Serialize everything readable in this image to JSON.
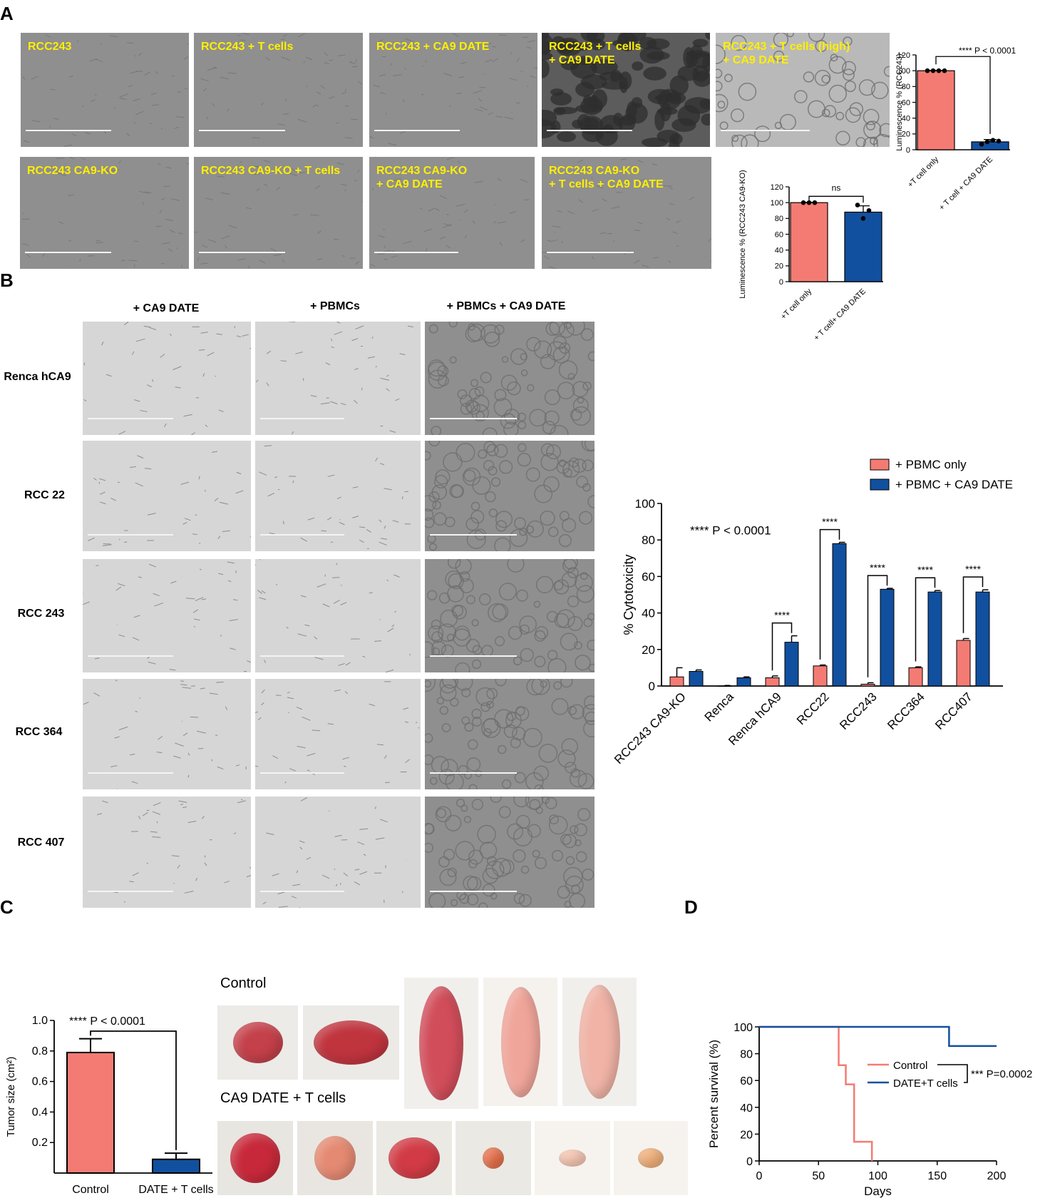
{
  "panels": {
    "A": "A",
    "B": "B",
    "C": "C",
    "D": "D"
  },
  "panelA": {
    "images_row1": [
      {
        "label": "RCC243",
        "tone": "mid"
      },
      {
        "label": "RCC243 + T cells",
        "tone": "mid"
      },
      {
        "label": "RCC243 + CA9 DATE",
        "tone": "mid"
      },
      {
        "label": "RCC243 + T cells\n+ CA9 DATE",
        "tone": "dark"
      },
      {
        "label": "RCC243 + T cells (high)\n+ CA9 DATE",
        "tone": "light"
      }
    ],
    "images_row2": [
      {
        "label": "RCC243 CA9-KO",
        "tone": "mid"
      },
      {
        "label": "RCC243 CA9-KO + T cells",
        "tone": "mid"
      },
      {
        "label": "RCC243 CA9-KO\n+ CA9 DATE",
        "tone": "mid"
      },
      {
        "label": "RCC243 CA9-KO\n+ T cells + CA9 DATE",
        "tone": "mid"
      }
    ]
  },
  "panelB": {
    "columns": [
      "+ CA9 DATE",
      "+ PBMCs",
      "+ PBMCs + CA9 DATE"
    ],
    "rows": [
      "Renca hCA9",
      "RCC 22",
      "RCC 243",
      "RCC 364",
      "RCC 407"
    ]
  },
  "panelC": {
    "control_label": "Control",
    "treated_label": "CA9 DATE + T cells"
  },
  "chart_data": [
    {
      "id": "A-top",
      "type": "bar",
      "categories": [
        "+T cell only",
        "+ T cell + CA9 DATE"
      ],
      "values": [
        100,
        10
      ],
      "errors": [
        0.5,
        3
      ],
      "points": [
        [
          100,
          100,
          100,
          100
        ],
        [
          7,
          10,
          12,
          11
        ]
      ],
      "ylabel": "Luminescence % (RCC243)",
      "ylim": [
        0,
        120
      ],
      "yticks": [
        "0",
        "20",
        "40",
        "60",
        "80",
        "100",
        "120"
      ],
      "annotation": "**** P < 0.0001",
      "colors": [
        "#f47b73",
        "#11509f"
      ]
    },
    {
      "id": "A-bottom",
      "type": "bar",
      "categories": [
        "+T cell only",
        "+ T cell+ CA9 DATE"
      ],
      "values": [
        100,
        88
      ],
      "errors": [
        0.5,
        8
      ],
      "points": [
        [
          100,
          100,
          100
        ],
        [
          97,
          80,
          90
        ]
      ],
      "ylabel": "Luminescence % (RCC243 CA9-KO)",
      "ylim": [
        0,
        120
      ],
      "yticks": [
        "0",
        "20",
        "40",
        "60",
        "80",
        "100",
        "120"
      ],
      "annotation": "ns",
      "colors": [
        "#f47b73",
        "#11509f"
      ]
    },
    {
      "id": "B",
      "type": "bar",
      "categories": [
        "RCC243 CA9-KO",
        "Renca",
        "Renca hCA9",
        "RCC22",
        "RCC243",
        "RCC364",
        "RCC407"
      ],
      "series": [
        {
          "name": "+ PBMC only",
          "values": [
            5,
            0,
            4.5,
            11,
            1,
            10,
            25
          ],
          "errors": [
            5,
            0.3,
            1,
            0.5,
            0.8,
            0.5,
            1
          ],
          "color": "#f47b73"
        },
        {
          "name": "+ PBMC + CA9 DATE",
          "values": [
            8,
            4.5,
            24,
            78,
            53,
            51.5,
            51.5
          ],
          "errors": [
            0.8,
            0.5,
            3.5,
            0.7,
            0.5,
            0.8,
            1.2
          ],
          "color": "#11509f"
        }
      ],
      "sig": [
        "",
        "",
        "****",
        "****",
        "****",
        "****",
        "****"
      ],
      "ylabel": "% Cytotoxicity",
      "ylim": [
        0,
        100
      ],
      "yticks": [
        "0",
        "20",
        "40",
        "60",
        "80",
        "100"
      ],
      "annotation": "**** P < 0.0001"
    },
    {
      "id": "C",
      "type": "bar",
      "categories": [
        "Control",
        "DATE + T cells"
      ],
      "values": [
        0.79,
        0.09
      ],
      "errors": [
        0.09,
        0.04
      ],
      "ylabel": "Tumor size (cm²)",
      "ylim": [
        0,
        1.0
      ],
      "yticks": [
        "0.2",
        "0.4",
        "0.6",
        "0.8",
        "1.0"
      ],
      "annotation": "**** P < 0.0001",
      "colors": [
        "#f47b73",
        "#11509f"
      ]
    },
    {
      "id": "D",
      "type": "line",
      "xlabel": "Days",
      "ylabel": "Percent survival (%)",
      "xlim": [
        0,
        200
      ],
      "ylim": [
        0,
        100
      ],
      "xticks": [
        "0",
        "50",
        "100",
        "150",
        "200"
      ],
      "yticks": [
        "0",
        "20",
        "40",
        "60",
        "80",
        "100"
      ],
      "series": [
        {
          "name": "Control",
          "color": "#f47b73",
          "steps": [
            [
              0,
              100
            ],
            [
              67,
              100
            ],
            [
              67,
              71.4
            ],
            [
              73,
              71.4
            ],
            [
              73,
              57.1
            ],
            [
              80,
              57.1
            ],
            [
              80,
              14.3
            ],
            [
              95,
              14.3
            ],
            [
              95,
              0
            ]
          ]
        },
        {
          "name": "DATE+T cells",
          "color": "#11509f",
          "steps": [
            [
              0,
              100
            ],
            [
              160,
              100
            ],
            [
              160,
              85.7
            ],
            [
              200,
              85.7
            ]
          ]
        }
      ],
      "annotation": "*** P=0.0002"
    }
  ]
}
